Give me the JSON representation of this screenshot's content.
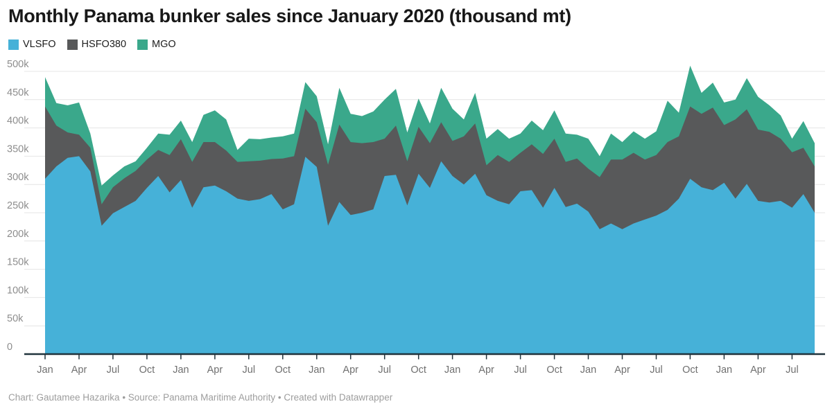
{
  "header": {
    "title": "Monthly Panama bunker sales since January 2020 (thousand mt)",
    "legend": [
      {
        "label": "VLSFO",
        "color": "#46b1d8"
      },
      {
        "label": "HSFO380",
        "color": "#58595a"
      },
      {
        "label": "MGO",
        "color": "#3aa88b"
      }
    ]
  },
  "footer": {
    "text": "Chart: Gautamee Hazarika  • Source: Panama Maritime Authority • Created with Datawrapper"
  },
  "chart_data": {
    "type": "area",
    "stacked": true,
    "title": "Monthly Panama bunker sales since January 2020 (thousand mt)",
    "unit": "thousand mt",
    "legend_position": "top-left",
    "grid": true,
    "categories": [
      "2020-01",
      "2020-02",
      "2020-03",
      "2020-04",
      "2020-05",
      "2020-06",
      "2020-07",
      "2020-08",
      "2020-09",
      "2020-10",
      "2020-11",
      "2020-12",
      "2021-01",
      "2021-02",
      "2021-03",
      "2021-04",
      "2021-05",
      "2021-06",
      "2021-07",
      "2021-08",
      "2021-09",
      "2021-10",
      "2021-11",
      "2021-12",
      "2022-01",
      "2022-02",
      "2022-03",
      "2022-04",
      "2022-05",
      "2022-06",
      "2022-07",
      "2022-08",
      "2022-09",
      "2022-10",
      "2022-11",
      "2022-12",
      "2023-01",
      "2023-02",
      "2023-03",
      "2023-04",
      "2023-05",
      "2023-06",
      "2023-07",
      "2023-08",
      "2023-09",
      "2023-10",
      "2023-11",
      "2023-12",
      "2024-01",
      "2024-02",
      "2024-03",
      "2024-04",
      "2024-05",
      "2024-06",
      "2024-07",
      "2024-08",
      "2024-09",
      "2024-10",
      "2024-11",
      "2024-12",
      "2025-01",
      "2025-02",
      "2025-03",
      "2025-04",
      "2025-05",
      "2025-06",
      "2025-07",
      "2025-08",
      "2025-09"
    ],
    "series": [
      {
        "name": "VLSFO",
        "color": "#46b1d8",
        "values": [
          310,
          332,
          347,
          350,
          323,
          227,
          249,
          260,
          271,
          294,
          315,
          286,
          308,
          259,
          295,
          298,
          288,
          275,
          271,
          274,
          283,
          256,
          265,
          349,
          331,
          227,
          269,
          246,
          250,
          256,
          315,
          317,
          263,
          319,
          294,
          341,
          315,
          300,
          319,
          281,
          271,
          265,
          288,
          290,
          259,
          294,
          260,
          266,
          252,
          221,
          231,
          221,
          231,
          238,
          245,
          255,
          275,
          310,
          295,
          290,
          303,
          275,
          301,
          271,
          268,
          271,
          259,
          283,
          250
        ]
      },
      {
        "name": "HSFO380",
        "color": "#58595a",
        "values": [
          128,
          72,
          45,
          38,
          42,
          38,
          46,
          51,
          53,
          50,
          46,
          66,
          72,
          81,
          80,
          77,
          72,
          65,
          70,
          68,
          62,
          90,
          85,
          85,
          79,
          108,
          137,
          129,
          123,
          119,
          66,
          87,
          78,
          83,
          79,
          69,
          62,
          85,
          89,
          53,
          81,
          75,
          68,
          81,
          95,
          87,
          80,
          80,
          76,
          92,
          113,
          123,
          125,
          106,
          107,
          120,
          110,
          128,
          130,
          146,
          102,
          140,
          132,
          126,
          125,
          110,
          98,
          82,
          82
        ]
      },
      {
        "name": "MGO",
        "color": "#3aa88b",
        "values": [
          52,
          40,
          48,
          57,
          25,
          33,
          21,
          21,
          17,
          21,
          29,
          36,
          33,
          35,
          48,
          56,
          55,
          21,
          40,
          38,
          38,
          39,
          40,
          47,
          46,
          36,
          65,
          50,
          48,
          54,
          69,
          65,
          51,
          50,
          35,
          61,
          57,
          30,
          54,
          47,
          46,
          41,
          34,
          42,
          42,
          50,
          50,
          42,
          53,
          37,
          46,
          31,
          38,
          37,
          42,
          73,
          42,
          72,
          37,
          44,
          40,
          35,
          55,
          58,
          47,
          41,
          24,
          47,
          41
        ]
      }
    ],
    "y_axis": {
      "min": 0,
      "max": 500,
      "tick_interval": 50,
      "tick_labels": [
        "0",
        "50k",
        "100k",
        "150k",
        "200k",
        "250k",
        "300k",
        "350k",
        "400k",
        "450k",
        "500k"
      ]
    },
    "x_axis": {
      "tick_every_months": 3,
      "tick_labels": [
        "Jan",
        "Apr",
        "Jul",
        "Oct",
        "Jan",
        "Apr",
        "Jul",
        "Oct",
        "Jan",
        "Apr",
        "Jul",
        "Oct",
        "Jan",
        "Apr",
        "Jul",
        "Oct",
        "Jan",
        "Apr",
        "Jul",
        "Oct",
        "Jan",
        "Apr",
        "Jul"
      ]
    },
    "style": {
      "background": "#ffffff",
      "grid_color": "#e4e4e4",
      "baseline_color": "#20323b",
      "y_label_color": "#8d8d8d",
      "x_label_color": "#6f6f6f"
    }
  }
}
